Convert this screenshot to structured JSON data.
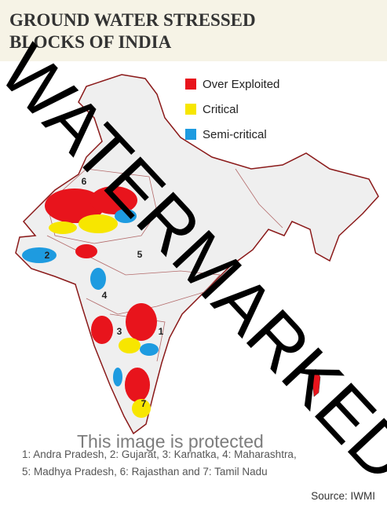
{
  "header": {
    "title_lines": [
      "GROUND WATER STRESSED",
      "BLOCKS OF INDIA"
    ]
  },
  "legend": [
    {
      "label": "Over Exploited",
      "color": "#e8141c"
    },
    {
      "label": "Critical",
      "color": "#f7e600"
    },
    {
      "label": "Semi-critical",
      "color": "#1e9be0"
    }
  ],
  "map": {
    "labels": [
      "6",
      "2",
      "5",
      "4",
      "3",
      "1",
      "7"
    ]
  },
  "footnote": [
    "1: Andra Pradesh, 2: Gujarat, 3: Karnatka, 4: Maharashtra,",
    "5: Madhya Pradesh, 6: Rajasthan and 7: Tamil Nadu"
  ],
  "source": "Source: IWMI",
  "watermark": {
    "text": "WATERMARKED",
    "notice": "This image is protected"
  }
}
